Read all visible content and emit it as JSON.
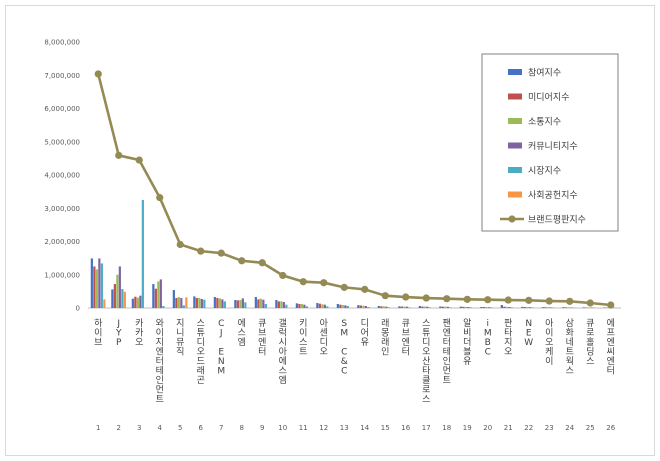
{
  "chart_data": {
    "type": "bar",
    "title": "",
    "xlabel": "",
    "ylabel": "",
    "ylim": [
      0,
      8000000
    ],
    "yticks": [
      "0",
      "1,000,000",
      "2,000,000",
      "3,000,000",
      "4,000,000",
      "5,000,000",
      "6,000,000",
      "7,000,000",
      "8,000,000"
    ],
    "grid": false,
    "legend_position": "top-right",
    "categories": [
      "하이브",
      "JYP",
      "카카오",
      "와이지엔터테인먼트",
      "지니뮤직",
      "스튜디오드래곤",
      "CJ ENM",
      "에스엠",
      "큐브엔터",
      "갤럭시아에스엠",
      "키이스트",
      "아센디오",
      "SM C&C",
      "디어유",
      "래몽래인",
      "큐브엔터",
      "스튜디오산타클로스",
      "팬엔터테인먼트",
      "알비더블유",
      "iMBC",
      "판타지오",
      "NEW",
      "아이오케이",
      "삼화네트웍스",
      "큐로홀딩스",
      "에프엔씨엔터"
    ],
    "ranks": [
      "1",
      "2",
      "3",
      "4",
      "5",
      "6",
      "7",
      "8",
      "9",
      "10",
      "11",
      "12",
      "13",
      "14",
      "15",
      "16",
      "17",
      "18",
      "19",
      "20",
      "21",
      "22",
      "23",
      "24",
      "25",
      "26"
    ],
    "series": [
      {
        "name": "참여지수",
        "color": "#4472c4",
        "values": [
          1490000,
          560000,
          280000,
          720000,
          540000,
          350000,
          330000,
          240000,
          330000,
          240000,
          140000,
          150000,
          120000,
          85000,
          60000,
          50000,
          60000,
          45000,
          40000,
          30000,
          90000,
          35000,
          25000,
          25000,
          20000,
          15000
        ]
      },
      {
        "name": "미디어지수",
        "color": "#c0504d",
        "values": [
          1250000,
          720000,
          340000,
          580000,
          300000,
          300000,
          300000,
          230000,
          260000,
          200000,
          120000,
          130000,
          100000,
          75000,
          50000,
          45000,
          45000,
          40000,
          35000,
          30000,
          40000,
          30000,
          25000,
          20000,
          15000,
          10000
        ]
      },
      {
        "name": "소통지수",
        "color": "#9bbb59",
        "values": [
          1160000,
          1000000,
          310000,
          800000,
          330000,
          300000,
          290000,
          240000,
          280000,
          200000,
          120000,
          110000,
          90000,
          70000,
          50000,
          45000,
          45000,
          40000,
          35000,
          30000,
          35000,
          30000,
          25000,
          20000,
          15000,
          10000
        ]
      },
      {
        "name": "커뮤니티지수",
        "color": "#8064a2",
        "values": [
          1490000,
          1250000,
          370000,
          860000,
          300000,
          270000,
          260000,
          290000,
          250000,
          180000,
          100000,
          100000,
          80000,
          60000,
          40000,
          40000,
          40000,
          35000,
          30000,
          25000,
          30000,
          25000,
          20000,
          15000,
          15000,
          10000
        ]
      },
      {
        "name": "시장지수",
        "color": "#4bacc6",
        "values": [
          1340000,
          570000,
          3250000,
          60000,
          80000,
          250000,
          200000,
          170000,
          120000,
          100000,
          50000,
          50000,
          60000,
          30000,
          20000,
          20000,
          20000,
          20000,
          20000,
          20000,
          20000,
          20000,
          15000,
          15000,
          10000,
          10000
        ]
      },
      {
        "name": "사회공헌지수",
        "color": "#f79646",
        "values": [
          260000,
          490000,
          0,
          0,
          320000,
          0,
          0,
          0,
          0,
          0,
          0,
          0,
          0,
          0,
          0,
          0,
          0,
          0,
          0,
          0,
          0,
          0,
          0,
          0,
          0,
          0
        ]
      },
      {
        "name": "브랜드평판지수",
        "color": "#948a54",
        "type": "line",
        "values": [
          7040000,
          4590000,
          4450000,
          3320000,
          1910000,
          1710000,
          1650000,
          1420000,
          1360000,
          980000,
          790000,
          760000,
          620000,
          560000,
          370000,
          330000,
          300000,
          280000,
          260000,
          250000,
          240000,
          230000,
          210000,
          200000,
          150000,
          90000
        ]
      }
    ]
  }
}
